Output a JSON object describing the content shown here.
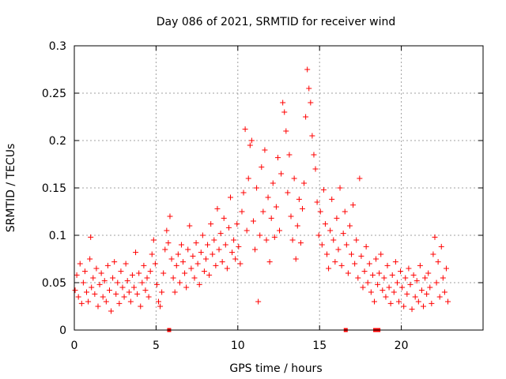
{
  "chart_data": {
    "type": "scatter",
    "title": "Day 086 of 2021, SRMTID for receiver wind",
    "xlabel": "GPS time / hours",
    "ylabel": "SRMTID / TECUs",
    "xlim": [
      0,
      25
    ],
    "ylim": [
      0,
      0.3
    ],
    "x_ticks": [
      0,
      5,
      10,
      15,
      20
    ],
    "x_tick_labels": [
      "0",
      "5",
      "10",
      "15",
      "20"
    ],
    "y_ticks": [
      0,
      0.05,
      0.1,
      0.15,
      0.2,
      0.25,
      0.3
    ],
    "y_tick_labels": [
      "0",
      "0.05",
      "0.1",
      "0.15",
      "0.2",
      "0.25",
      "0.3"
    ],
    "grid": true,
    "series_color": "#ff0000",
    "marker": "plus",
    "zero_markers_x": [
      5.8,
      16.6,
      18.4,
      18.6
    ],
    "points": [
      [
        0.05,
        0.042
      ],
      [
        0.15,
        0.058
      ],
      [
        0.25,
        0.035
      ],
      [
        0.35,
        0.07
      ],
      [
        0.45,
        0.028
      ],
      [
        0.55,
        0.05
      ],
      [
        0.65,
        0.062
      ],
      [
        0.75,
        0.04
      ],
      [
        0.85,
        0.03
      ],
      [
        0.95,
        0.075
      ],
      [
        1.0,
        0.098
      ],
      [
        1.05,
        0.045
      ],
      [
        1.15,
        0.055
      ],
      [
        1.25,
        0.038
      ],
      [
        1.35,
        0.065
      ],
      [
        1.45,
        0.025
      ],
      [
        1.55,
        0.048
      ],
      [
        1.65,
        0.06
      ],
      [
        1.75,
        0.035
      ],
      [
        1.85,
        0.052
      ],
      [
        1.95,
        0.03
      ],
      [
        2.05,
        0.068
      ],
      [
        2.15,
        0.042
      ],
      [
        2.25,
        0.02
      ],
      [
        2.35,
        0.055
      ],
      [
        2.45,
        0.072
      ],
      [
        2.55,
        0.038
      ],
      [
        2.65,
        0.05
      ],
      [
        2.75,
        0.028
      ],
      [
        2.85,
        0.062
      ],
      [
        2.95,
        0.045
      ],
      [
        3.05,
        0.035
      ],
      [
        3.15,
        0.07
      ],
      [
        3.25,
        0.052
      ],
      [
        3.35,
        0.04
      ],
      [
        3.45,
        0.03
      ],
      [
        3.55,
        0.058
      ],
      [
        3.65,
        0.045
      ],
      [
        3.75,
        0.082
      ],
      [
        3.85,
        0.038
      ],
      [
        3.95,
        0.06
      ],
      [
        4.05,
        0.025
      ],
      [
        4.15,
        0.05
      ],
      [
        4.25,
        0.068
      ],
      [
        4.35,
        0.042
      ],
      [
        4.45,
        0.055
      ],
      [
        4.55,
        0.035
      ],
      [
        4.65,
        0.062
      ],
      [
        4.75,
        0.08
      ],
      [
        4.85,
        0.095
      ],
      [
        4.95,
        0.07
      ],
      [
        5.05,
        0.048
      ],
      [
        5.15,
        0.03
      ],
      [
        5.25,
        0.025
      ],
      [
        5.35,
        0.04
      ],
      [
        5.45,
        0.06
      ],
      [
        5.55,
        0.085
      ],
      [
        5.65,
        0.105
      ],
      [
        5.75,
        0.092
      ],
      [
        5.85,
        0.12
      ],
      [
        5.95,
        0.075
      ],
      [
        6.05,
        0.055
      ],
      [
        6.15,
        0.04
      ],
      [
        6.25,
        0.068
      ],
      [
        6.35,
        0.08
      ],
      [
        6.45,
        0.05
      ],
      [
        6.55,
        0.09
      ],
      [
        6.65,
        0.072
      ],
      [
        6.75,
        0.06
      ],
      [
        6.85,
        0.045
      ],
      [
        6.95,
        0.085
      ],
      [
        7.05,
        0.11
      ],
      [
        7.15,
        0.065
      ],
      [
        7.25,
        0.078
      ],
      [
        7.35,
        0.055
      ],
      [
        7.45,
        0.092
      ],
      [
        7.55,
        0.07
      ],
      [
        7.65,
        0.048
      ],
      [
        7.75,
        0.082
      ],
      [
        7.85,
        0.1
      ],
      [
        7.95,
        0.062
      ],
      [
        8.05,
        0.075
      ],
      [
        8.15,
        0.09
      ],
      [
        8.25,
        0.058
      ],
      [
        8.35,
        0.112
      ],
      [
        8.45,
        0.08
      ],
      [
        8.55,
        0.095
      ],
      [
        8.65,
        0.068
      ],
      [
        8.75,
        0.128
      ],
      [
        8.85,
        0.085
      ],
      [
        8.95,
        0.102
      ],
      [
        9.05,
        0.072
      ],
      [
        9.15,
        0.118
      ],
      [
        9.25,
        0.09
      ],
      [
        9.35,
        0.065
      ],
      [
        9.45,
        0.108
      ],
      [
        9.55,
        0.14
      ],
      [
        9.65,
        0.082
      ],
      [
        9.75,
        0.095
      ],
      [
        9.85,
        0.075
      ],
      [
        9.95,
        0.112
      ],
      [
        10.05,
        0.088
      ],
      [
        10.15,
        0.07
      ],
      [
        10.25,
        0.125
      ],
      [
        10.35,
        0.145
      ],
      [
        10.45,
        0.212
      ],
      [
        10.55,
        0.105
      ],
      [
        10.65,
        0.16
      ],
      [
        10.75,
        0.195
      ],
      [
        10.85,
        0.2
      ],
      [
        10.95,
        0.115
      ],
      [
        11.05,
        0.085
      ],
      [
        11.15,
        0.15
      ],
      [
        11.25,
        0.03
      ],
      [
        11.35,
        0.1
      ],
      [
        11.45,
        0.172
      ],
      [
        11.55,
        0.125
      ],
      [
        11.65,
        0.19
      ],
      [
        11.75,
        0.095
      ],
      [
        11.85,
        0.14
      ],
      [
        11.95,
        0.072
      ],
      [
        12.05,
        0.118
      ],
      [
        12.15,
        0.155
      ],
      [
        12.25,
        0.098
      ],
      [
        12.35,
        0.13
      ],
      [
        12.45,
        0.182
      ],
      [
        12.55,
        0.105
      ],
      [
        12.65,
        0.165
      ],
      [
        12.75,
        0.24
      ],
      [
        12.85,
        0.23
      ],
      [
        12.95,
        0.21
      ],
      [
        13.05,
        0.145
      ],
      [
        13.15,
        0.185
      ],
      [
        13.25,
        0.12
      ],
      [
        13.35,
        0.095
      ],
      [
        13.45,
        0.16
      ],
      [
        13.55,
        0.075
      ],
      [
        13.65,
        0.11
      ],
      [
        13.75,
        0.138
      ],
      [
        13.85,
        0.092
      ],
      [
        13.95,
        0.128
      ],
      [
        14.05,
        0.155
      ],
      [
        14.15,
        0.225
      ],
      [
        14.25,
        0.275
      ],
      [
        14.35,
        0.255
      ],
      [
        14.45,
        0.24
      ],
      [
        14.55,
        0.205
      ],
      [
        14.65,
        0.185
      ],
      [
        14.75,
        0.17
      ],
      [
        14.85,
        0.135
      ],
      [
        14.95,
        0.1
      ],
      [
        15.05,
        0.125
      ],
      [
        15.15,
        0.09
      ],
      [
        15.25,
        0.148
      ],
      [
        15.35,
        0.112
      ],
      [
        15.45,
        0.08
      ],
      [
        15.55,
        0.065
      ],
      [
        15.65,
        0.105
      ],
      [
        15.75,
        0.138
      ],
      [
        15.85,
        0.095
      ],
      [
        15.95,
        0.072
      ],
      [
        16.05,
        0.118
      ],
      [
        16.15,
        0.085
      ],
      [
        16.25,
        0.15
      ],
      [
        16.35,
        0.068
      ],
      [
        16.45,
        0.102
      ],
      [
        16.55,
        0.125
      ],
      [
        16.65,
        0.09
      ],
      [
        16.75,
        0.06
      ],
      [
        16.85,
        0.11
      ],
      [
        16.95,
        0.08
      ],
      [
        17.05,
        0.132
      ],
      [
        17.15,
        0.07
      ],
      [
        17.25,
        0.095
      ],
      [
        17.35,
        0.055
      ],
      [
        17.45,
        0.16
      ],
      [
        17.55,
        0.078
      ],
      [
        17.65,
        0.045
      ],
      [
        17.75,
        0.062
      ],
      [
        17.85,
        0.088
      ],
      [
        17.95,
        0.05
      ],
      [
        18.05,
        0.07
      ],
      [
        18.15,
        0.04
      ],
      [
        18.25,
        0.058
      ],
      [
        18.35,
        0.03
      ],
      [
        18.45,
        0.075
      ],
      [
        18.55,
        0.048
      ],
      [
        18.65,
        0.06
      ],
      [
        18.75,
        0.08
      ],
      [
        18.85,
        0.042
      ],
      [
        18.95,
        0.055
      ],
      [
        19.05,
        0.035
      ],
      [
        19.15,
        0.068
      ],
      [
        19.25,
        0.045
      ],
      [
        19.35,
        0.028
      ],
      [
        19.45,
        0.058
      ],
      [
        19.55,
        0.04
      ],
      [
        19.65,
        0.072
      ],
      [
        19.75,
        0.05
      ],
      [
        19.85,
        0.03
      ],
      [
        19.95,
        0.062
      ],
      [
        20.05,
        0.045
      ],
      [
        20.15,
        0.025
      ],
      [
        20.25,
        0.055
      ],
      [
        20.35,
        0.038
      ],
      [
        20.45,
        0.065
      ],
      [
        20.55,
        0.048
      ],
      [
        20.65,
        0.022
      ],
      [
        20.75,
        0.058
      ],
      [
        20.85,
        0.035
      ],
      [
        20.95,
        0.052
      ],
      [
        21.05,
        0.03
      ],
      [
        21.15,
        0.068
      ],
      [
        21.25,
        0.042
      ],
      [
        21.35,
        0.025
      ],
      [
        21.45,
        0.055
      ],
      [
        21.55,
        0.038
      ],
      [
        21.65,
        0.06
      ],
      [
        21.75,
        0.045
      ],
      [
        21.85,
        0.028
      ],
      [
        21.95,
        0.08
      ],
      [
        22.05,
        0.098
      ],
      [
        22.15,
        0.05
      ],
      [
        22.25,
        0.072
      ],
      [
        22.35,
        0.035
      ],
      [
        22.45,
        0.088
      ],
      [
        22.55,
        0.055
      ],
      [
        22.65,
        0.04
      ],
      [
        22.75,
        0.065
      ],
      [
        22.85,
        0.03
      ]
    ]
  }
}
